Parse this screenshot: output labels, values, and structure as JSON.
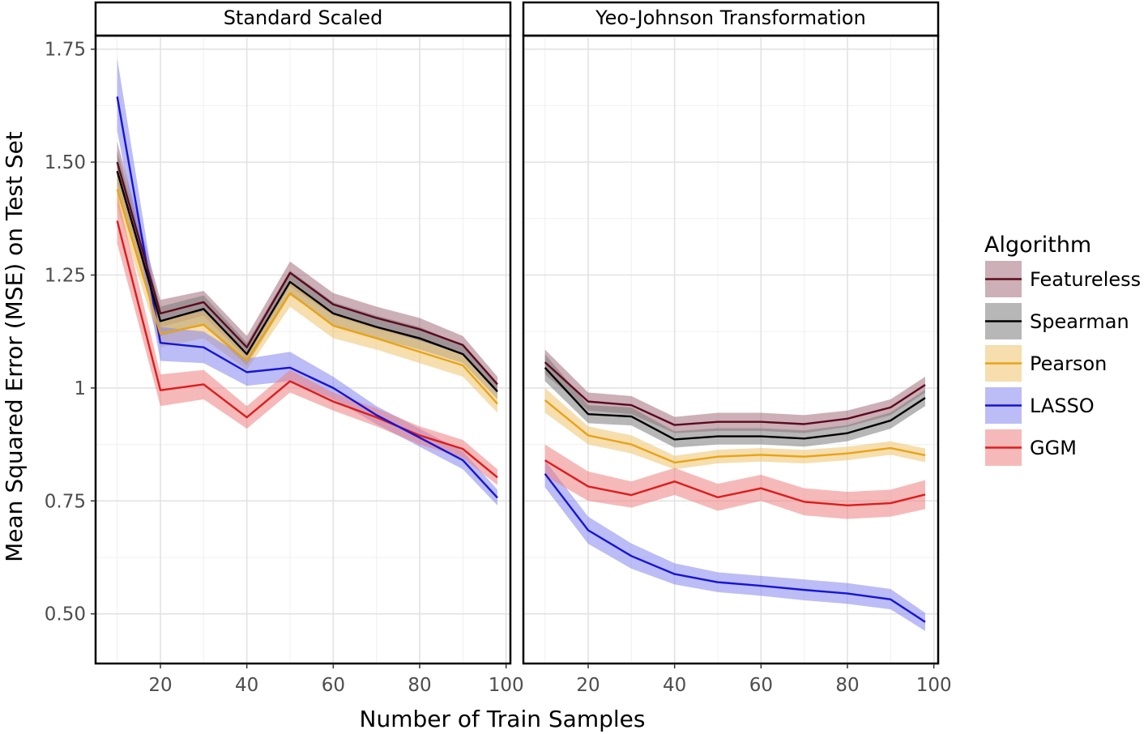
{
  "chart_data": {
    "type": "line",
    "xlabel": "Number of Train Samples",
    "ylabel": "Mean Squared Error (MSE) on Test Set",
    "xlim": [
      5,
      101
    ],
    "ylim": [
      0.39,
      1.78
    ],
    "x_ticks": [
      20,
      40,
      60,
      80,
      100
    ],
    "x_tick_labels": [
      "20",
      "40",
      "60",
      "80",
      "100"
    ],
    "y_ticks": [
      0.5,
      0.75,
      1,
      1.25,
      1.5,
      1.75
    ],
    "y_tick_labels": [
      "0.50",
      "0.75",
      "1",
      "1.25",
      "1.50",
      "1.75"
    ],
    "grid": true,
    "legend": {
      "title": "Algorithm",
      "position": "right",
      "entries": [
        "Featureless",
        "Spearman",
        "Pearson",
        "LASSO",
        "GGM"
      ]
    },
    "colors": {
      "Featureless": "#5c0a1e",
      "Spearman": "#000000",
      "Pearson": "#e8a317",
      "LASSO": "#1515d4",
      "GGM": "#dd1c1c"
    },
    "fill_colors": {
      "Featureless": "#a26d7c",
      "Spearman": "#7c7c7c",
      "Pearson": "#efc36c",
      "LASSO": "#8585ee",
      "GGM": "#ee8080"
    },
    "x": [
      10,
      20,
      30,
      40,
      50,
      60,
      70,
      80,
      90,
      98
    ],
    "panels": [
      {
        "title": "Standard Scaled",
        "series": [
          {
            "name": "Featureless",
            "values": [
              1.5,
              1.165,
              1.19,
              1.09,
              1.255,
              1.185,
              1.155,
              1.13,
              1.095,
              1.008
            ],
            "lower": [
              1.45,
              1.135,
              1.16,
              1.065,
              1.225,
              1.16,
              1.13,
              1.105,
              1.075,
              0.99
            ],
            "upper": [
              1.545,
              1.195,
              1.215,
              1.115,
              1.28,
              1.21,
              1.18,
              1.155,
              1.115,
              1.025
            ]
          },
          {
            "name": "Spearman",
            "values": [
              1.48,
              1.148,
              1.175,
              1.075,
              1.235,
              1.165,
              1.135,
              1.11,
              1.075,
              0.992
            ],
            "lower": [
              1.43,
              1.115,
              1.14,
              1.05,
              1.205,
              1.14,
              1.11,
              1.085,
              1.055,
              0.975
            ],
            "upper": [
              1.525,
              1.18,
              1.205,
              1.1,
              1.26,
              1.19,
              1.16,
              1.135,
              1.095,
              1.01
            ]
          },
          {
            "name": "Pearson",
            "values": [
              1.44,
              1.12,
              1.14,
              1.06,
              1.21,
              1.138,
              1.11,
              1.08,
              1.05,
              0.965
            ],
            "lower": [
              1.4,
              1.09,
              1.11,
              1.04,
              1.18,
              1.11,
              1.085,
              1.055,
              1.025,
              0.945
            ],
            "upper": [
              1.485,
              1.15,
              1.17,
              1.08,
              1.24,
              1.165,
              1.135,
              1.105,
              1.075,
              0.985
            ]
          },
          {
            "name": "LASSO",
            "values": [
              1.645,
              1.1,
              1.09,
              1.035,
              1.045,
              1.0,
              0.94,
              0.89,
              0.84,
              0.757
            ],
            "lower": [
              1.57,
              1.06,
              1.055,
              1.005,
              1.015,
              0.975,
              0.92,
              0.87,
              0.82,
              0.74
            ],
            "upper": [
              1.73,
              1.135,
              1.125,
              1.065,
              1.08,
              1.025,
              0.96,
              0.91,
              0.86,
              0.775
            ]
          },
          {
            "name": "GGM",
            "values": [
              1.37,
              0.995,
              1.008,
              0.935,
              1.015,
              0.97,
              0.935,
              0.895,
              0.865,
              0.802
            ],
            "lower": [
              1.32,
              0.96,
              0.975,
              0.91,
              0.99,
              0.95,
              0.915,
              0.875,
              0.845,
              0.785
            ],
            "upper": [
              1.43,
              1.03,
              1.04,
              0.96,
              1.04,
              0.99,
              0.955,
              0.915,
              0.885,
              0.82
            ]
          }
        ]
      },
      {
        "title": "Yeo-Johnson Transformation",
        "series": [
          {
            "name": "Featureless",
            "values": [
              1.057,
              0.97,
              0.962,
              0.918,
              0.925,
              0.925,
              0.92,
              0.932,
              0.957,
              1.007
            ],
            "lower": [
              1.03,
              0.95,
              0.942,
              0.9,
              0.905,
              0.905,
              0.9,
              0.914,
              0.94,
              0.99
            ],
            "upper": [
              1.085,
              0.99,
              0.982,
              0.936,
              0.945,
              0.945,
              0.94,
              0.95,
              0.975,
              1.025
            ]
          },
          {
            "name": "Spearman",
            "values": [
              1.045,
              0.942,
              0.937,
              0.886,
              0.893,
              0.893,
              0.888,
              0.9,
              0.928,
              0.978
            ],
            "lower": [
              1.015,
              0.922,
              0.917,
              0.868,
              0.875,
              0.875,
              0.87,
              0.882,
              0.91,
              0.96
            ],
            "upper": [
              1.075,
              0.962,
              0.957,
              0.904,
              0.911,
              0.911,
              0.906,
              0.918,
              0.946,
              0.996
            ]
          },
          {
            "name": "Pearson",
            "values": [
              0.973,
              0.895,
              0.875,
              0.835,
              0.848,
              0.852,
              0.848,
              0.855,
              0.867,
              0.851
            ],
            "lower": [
              0.945,
              0.875,
              0.855,
              0.82,
              0.833,
              0.837,
              0.833,
              0.84,
              0.852,
              0.836
            ],
            "upper": [
              1.0,
              0.915,
              0.895,
              0.85,
              0.863,
              0.867,
              0.863,
              0.87,
              0.882,
              0.866
            ]
          },
          {
            "name": "LASSO",
            "values": [
              0.81,
              0.685,
              0.628,
              0.588,
              0.57,
              0.562,
              0.553,
              0.545,
              0.532,
              0.482
            ],
            "lower": [
              0.78,
              0.655,
              0.6,
              0.565,
              0.548,
              0.54,
              0.53,
              0.522,
              0.51,
              0.462
            ],
            "upper": [
              0.84,
              0.715,
              0.656,
              0.612,
              0.592,
              0.584,
              0.576,
              0.568,
              0.555,
              0.502
            ]
          },
          {
            "name": "GGM",
            "values": [
              0.84,
              0.782,
              0.763,
              0.793,
              0.758,
              0.778,
              0.748,
              0.74,
              0.745,
              0.764
            ],
            "lower": [
              0.805,
              0.75,
              0.735,
              0.763,
              0.728,
              0.75,
              0.718,
              0.71,
              0.715,
              0.732
            ],
            "upper": [
              0.875,
              0.815,
              0.793,
              0.823,
              0.788,
              0.808,
              0.778,
              0.77,
              0.775,
              0.796
            ]
          }
        ]
      }
    ]
  }
}
